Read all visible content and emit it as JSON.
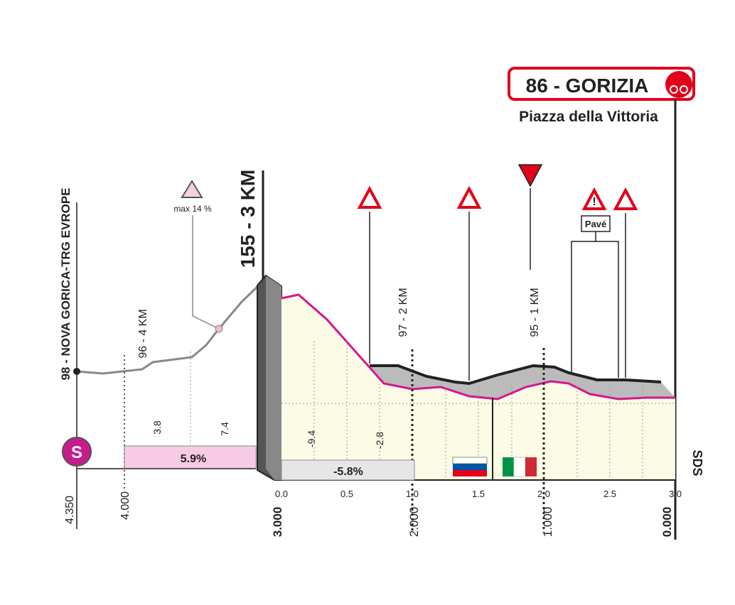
{
  "header": {
    "title": "86 - GORIZIA",
    "subtitle": "Piazza della Vittoria"
  },
  "markers": {
    "three_km": "155 - 3 KM",
    "start": "98 - NOVA GORICA-TRG EVROPE",
    "four_km": "96 - 4 KM",
    "two_km": "97 - 2 KM",
    "one_km": "95 - 1 KM",
    "max_gradient": "max 14 %",
    "pave": "Pavé",
    "logo": "SDS"
  },
  "left_segment": {
    "start_badge": "S",
    "gradients": [
      "3.8",
      "7.4"
    ],
    "average": "5.9%",
    "distances": [
      "4.350",
      "4.000"
    ]
  },
  "right_segment": {
    "gradients": [
      "-9.4",
      "-2.8"
    ],
    "average": "-5.8%",
    "x_axis": [
      "0.0",
      "0.5",
      "1.0",
      "1.5",
      "2.0",
      "2.5",
      "3.0"
    ],
    "distances": [
      "3.000",
      "2.000",
      "1.000",
      "0.000"
    ]
  }
}
